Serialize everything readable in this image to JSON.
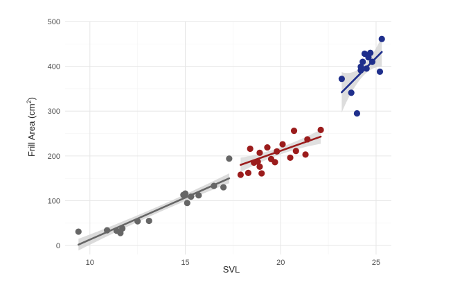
{
  "chart_data": {
    "type": "scatter",
    "title": "",
    "xlabel": "SVL",
    "ylabel": "Frill Area (cm",
    "ylabel_superscript": "2",
    "ylabel_suffix": ")",
    "xlim": [
      8.7,
      25.8
    ],
    "ylim": [
      -20,
      500
    ],
    "xticks": [
      10,
      15,
      20,
      25
    ],
    "yticks": [
      0,
      100,
      200,
      300,
      400,
      500
    ],
    "grid": true,
    "legend": "none",
    "series": [
      {
        "color": "#666666",
        "band_color": "#d2d2d2",
        "points": [
          [
            9.4,
            31
          ],
          [
            10.9,
            34
          ],
          [
            11.4,
            33
          ],
          [
            11.6,
            28
          ],
          [
            11.7,
            38
          ],
          [
            12.5,
            54
          ],
          [
            13.1,
            55
          ],
          [
            14.9,
            113
          ],
          [
            15.0,
            116
          ],
          [
            15.1,
            95
          ],
          [
            15.3,
            109
          ],
          [
            15.7,
            112
          ],
          [
            16.5,
            133
          ],
          [
            17.0,
            130
          ],
          [
            17.3,
            194
          ]
        ],
        "fit": {
          "x": [
            9.4,
            17.3
          ],
          "y": [
            2,
            150
          ]
        },
        "band_width": [
          13,
          7,
          11
        ]
      },
      {
        "color": "#9b1c1c",
        "band_color": "#d8d8d8",
        "points": [
          [
            17.9,
            158
          ],
          [
            18.3,
            162
          ],
          [
            18.4,
            216
          ],
          [
            18.6,
            185
          ],
          [
            18.8,
            187
          ],
          [
            18.9,
            207
          ],
          [
            18.9,
            176
          ],
          [
            19.0,
            161
          ],
          [
            19.3,
            219
          ],
          [
            19.5,
            193
          ],
          [
            19.7,
            186
          ],
          [
            19.8,
            210
          ],
          [
            20.1,
            226
          ],
          [
            20.5,
            196
          ],
          [
            20.7,
            256
          ],
          [
            20.8,
            211
          ],
          [
            21.3,
            203
          ],
          [
            21.4,
            237
          ],
          [
            22.1,
            258
          ]
        ],
        "fit": {
          "x": [
            17.9,
            22.1
          ],
          "y": [
            180,
            243
          ]
        },
        "band_width": [
          16,
          8,
          16
        ]
      },
      {
        "color": "#1f2f8c",
        "band_color": "#d5d5d5",
        "points": [
          [
            23.2,
            372
          ],
          [
            23.7,
            341
          ],
          [
            24.0,
            295
          ],
          [
            24.2,
            391
          ],
          [
            24.2,
            399
          ],
          [
            24.3,
            410
          ],
          [
            24.4,
            428
          ],
          [
            24.5,
            395
          ],
          [
            24.6,
            420
          ],
          [
            24.7,
            430
          ],
          [
            24.8,
            410
          ],
          [
            25.2,
            388
          ],
          [
            25.3,
            461
          ]
        ],
        "fit": {
          "x": [
            23.2,
            25.3
          ],
          "y": [
            342,
            432
          ]
        },
        "band_width": [
          45,
          12,
          33
        ]
      }
    ]
  }
}
